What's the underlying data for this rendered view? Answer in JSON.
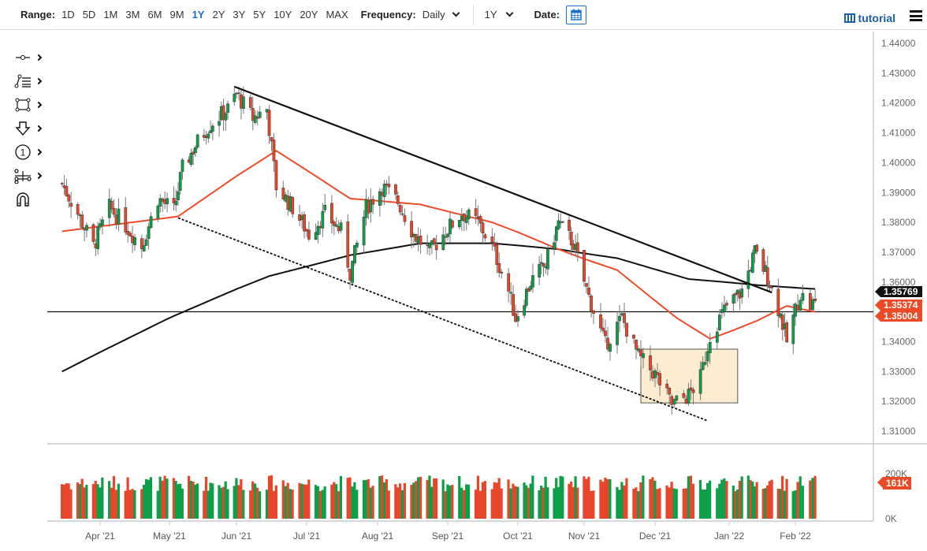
{
  "toolbar": {
    "range_label": "Range:",
    "ranges": [
      "1D",
      "5D",
      "1M",
      "3M",
      "6M",
      "9M",
      "1Y",
      "2Y",
      "3Y",
      "5Y",
      "10Y",
      "20Y",
      "MAX"
    ],
    "active_range": "1Y",
    "frequency_label": "Frequency:",
    "frequency_value": "Daily",
    "period_value": "1Y",
    "date_label": "Date:",
    "tutorial_label": "tutorial"
  },
  "tools": [
    {
      "name": "line-tool-icon",
      "has_submenu": true
    },
    {
      "name": "fibonacci-tool-icon",
      "has_submenu": true
    },
    {
      "name": "rectangle-tool-icon",
      "has_submenu": true
    },
    {
      "name": "arrow-down-tool-icon",
      "has_submenu": true
    },
    {
      "name": "numbered-marker-tool-icon",
      "has_submenu": true
    },
    {
      "name": "measure-tool-icon",
      "has_submenu": true
    },
    {
      "name": "magnet-icon",
      "has_submenu": false
    }
  ],
  "colors": {
    "up": "#0d9f48",
    "down": "#e8462a",
    "ma_fast": "#ef4b2b",
    "ma_slow": "#111111",
    "box_fill": "#fdeccf",
    "box_stroke": "#555555",
    "tag_dark": "#111111",
    "tag_red": "#ea4a25"
  },
  "price_tags": [
    {
      "value": "1.35769",
      "type": "dark"
    },
    {
      "value": "1.35374",
      "type": "red"
    },
    {
      "value": "1.35004",
      "type": "red"
    }
  ],
  "volume_tag": "161K",
  "chart_data": {
    "type": "candlestick",
    "title": "",
    "instrument_pair_hint": "Daily candles, 1Y range",
    "xlabel": "",
    "ylabel": "",
    "x_ticks": [
      "Apr '21",
      "May '21",
      "Jun '21",
      "Jul '21",
      "Aug '21",
      "Sep '21",
      "Oct '21",
      "Nov '21",
      "Dec '21",
      "Jan '22",
      "Feb '22"
    ],
    "y_ticks": [
      "1.44000",
      "1.43000",
      "1.42000",
      "1.41000",
      "1.40000",
      "1.39000",
      "1.38000",
      "1.37000",
      "1.36000",
      "1.35000",
      "1.34000",
      "1.33000",
      "1.32000",
      "1.31000"
    ],
    "ylim": [
      1.305,
      1.4445
    ],
    "volume_ticks": [
      "200K",
      "0K"
    ],
    "horizontal_line": 1.35004,
    "last_close": 1.35374,
    "ma_slow_last": 1.35769,
    "ma_fast_last": 1.35004,
    "last_volume": "161K",
    "close_anchors": [
      [
        "Mar 15 '21",
        1.393
      ],
      [
        "Mar 22 '21",
        1.383
      ],
      [
        "Mar 29 '21",
        1.372
      ],
      [
        "Apr 5 '21",
        1.385
      ],
      [
        "Apr 12 '21",
        1.379
      ],
      [
        "Apr 19 '21",
        1.372
      ],
      [
        "Apr 26 '21",
        1.388
      ],
      [
        "May 3 '21",
        1.384
      ],
      [
        "May 7 '21",
        1.398
      ],
      [
        "May 14 '21",
        1.407
      ],
      [
        "May 20 '21",
        1.413
      ],
      [
        "May 28 '21",
        1.418
      ],
      [
        "Jun 1 '21",
        1.423
      ],
      [
        "Jun 8 '21",
        1.415
      ],
      [
        "Jun 14 '21",
        1.418
      ],
      [
        "Jun 18 '21",
        1.392
      ],
      [
        "Jun 25 '21",
        1.385
      ],
      [
        "Jul 2 '21",
        1.376
      ],
      [
        "Jul 9 '21",
        1.383
      ],
      [
        "Jul 16 '21",
        1.377
      ],
      [
        "Jul 20 '21",
        1.363
      ],
      [
        "Jul 27 '21",
        1.385
      ],
      [
        "Aug 3 '21",
        1.392
      ],
      [
        "Aug 10 '21",
        1.387
      ],
      [
        "Aug 17 '21",
        1.376
      ],
      [
        "Aug 24 '21",
        1.37
      ],
      [
        "Aug 31 '21",
        1.377
      ],
      [
        "Sep 7 '21",
        1.383
      ],
      [
        "Sep 14 '21",
        1.38
      ],
      [
        "Sep 20 '21",
        1.372
      ],
      [
        "Sep 27 '21",
        1.357
      ],
      [
        "Sep 30 '21",
        1.348
      ],
      [
        "Oct 7 '21",
        1.36
      ],
      [
        "Oct 14 '21",
        1.366
      ],
      [
        "Oct 20 '21",
        1.38
      ],
      [
        "Oct 27 '21",
        1.373
      ],
      [
        "Nov 3 '21",
        1.355
      ],
      [
        "Nov 10 '21",
        1.339
      ],
      [
        "Nov 17 '21",
        1.348
      ],
      [
        "Nov 24 '21",
        1.335
      ],
      [
        "Dec 1 '21",
        1.329
      ],
      [
        "Dec 8 '21",
        1.319
      ],
      [
        "Dec 15 '21",
        1.322
      ],
      [
        "Dec 20 '21",
        1.328
      ],
      [
        "Dec 24 '21",
        1.342
      ],
      [
        "Dec 31 '21",
        1.352
      ],
      [
        "Jan 7 '22",
        1.357
      ],
      [
        "Jan 13 '22",
        1.37
      ],
      [
        "Jan 19 '22",
        1.362
      ],
      [
        "Jan 25 '22",
        1.349
      ],
      [
        "Jan 28 '22",
        1.34
      ],
      [
        "Feb 3 '22",
        1.356
      ],
      [
        "Feb 7 '22",
        1.352
      ],
      [
        "Feb 9 '22",
        1.35374
      ]
    ],
    "trendlines": [
      {
        "name": "descending-resistance",
        "style": "solid",
        "from": [
          "May 31 '21",
          1.4255
        ],
        "to": [
          "Jan 21 '22",
          1.3565
        ]
      },
      {
        "name": "descending-support",
        "style": "dashed",
        "from": [
          "May 5 '21",
          1.3815
        ],
        "to": [
          "Dec 23 '21",
          1.3135
        ]
      }
    ],
    "rectangle": {
      "from": [
        "Nov 25 '21",
        1.3375
      ],
      "to": [
        "Jan 5 '22",
        1.3195
      ]
    },
    "series": [
      {
        "name": "Fast moving average (red)",
        "values_anchor": [
          [
            "Mar 15 '21",
            1.377
          ],
          [
            "May 5 '21",
            1.382
          ],
          [
            "Jun 18 '21",
            1.404
          ],
          [
            "Jul 20 '21",
            1.388
          ],
          [
            "Aug 20 '21",
            1.386
          ],
          [
            "Sep 20 '21",
            1.38
          ],
          [
            "Oct 20 '21",
            1.371
          ],
          [
            "Nov 15 '21",
            1.364
          ],
          [
            "Dec 10 '21",
            1.348
          ],
          [
            "Dec 24 '21",
            1.341
          ],
          [
            "Jan 14 '22",
            1.347
          ],
          [
            "Jan 28 '22",
            1.352
          ],
          [
            "Feb 9 '22",
            1.35004
          ]
        ]
      },
      {
        "name": "Slow moving average (black)",
        "values_anchor": [
          [
            "Mar 15 '21",
            1.33
          ],
          [
            "May 1 '21",
            1.348
          ],
          [
            "Jun 15 '21",
            1.362
          ],
          [
            "Jul 20 '21",
            1.369
          ],
          [
            "Aug 20 '21",
            1.373
          ],
          [
            "Sep 20 '21",
            1.373
          ],
          [
            "Oct 20 '21",
            1.371
          ],
          [
            "Nov 15 '21",
            1.368
          ],
          [
            "Dec 15 '21",
            1.361
          ],
          [
            "Jan 14 '22",
            1.359
          ],
          [
            "Feb 9 '22",
            1.35769
          ]
        ]
      }
    ]
  }
}
